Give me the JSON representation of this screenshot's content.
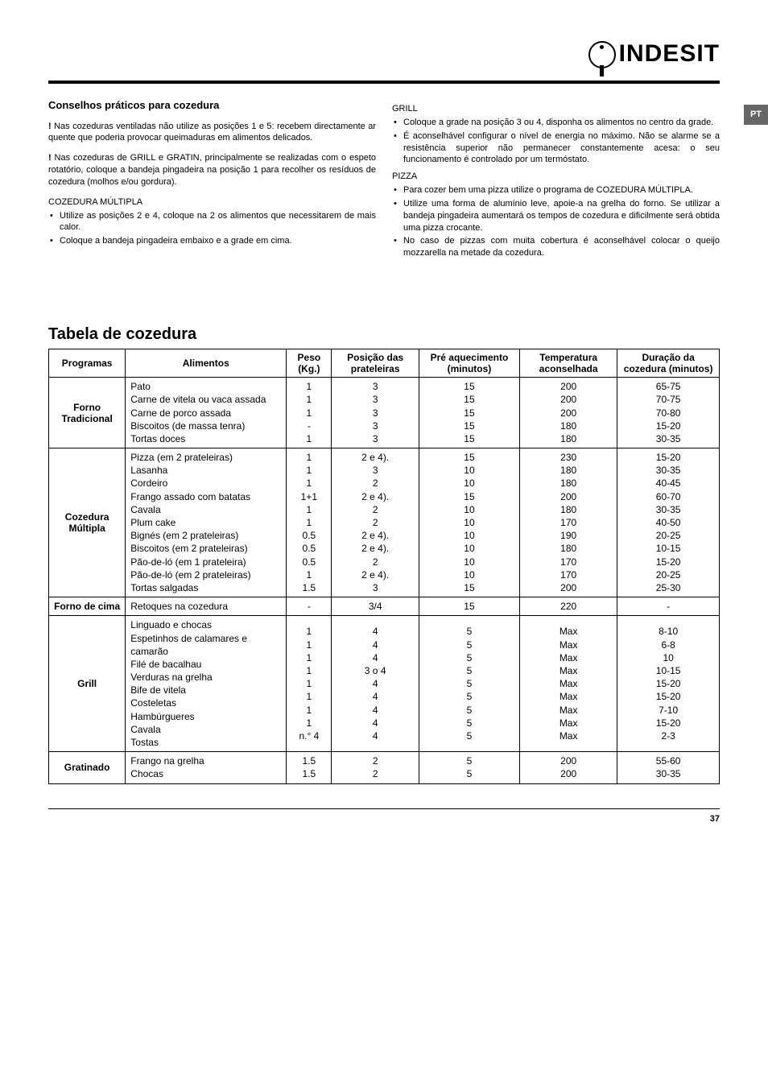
{
  "logo_text": "INDESIT",
  "lang_tab": "PT",
  "page_number": "37",
  "left": {
    "heading": "Conselhos práticos para cozedura",
    "p1_prefix": "!",
    "p1": "Nas cozeduras ventiladas não utilize as posições 1 e 5: recebem directamente ar quente que poderia provocar queimaduras em alimentos delicados.",
    "p2_prefix": "!",
    "p2": "Nas cozeduras de GRILL e GRATIN, principalmente se realizadas com o espeto rotatório, coloque a bandeja pingadeira na posição 1 para recolher os resíduos de cozedura (molhos e/ou gordura).",
    "sub1": "COZEDURA MÚLTIPLA",
    "sub1_items": [
      "Utilize as posições 2 e 4, coloque na 2 os alimentos que necessitarem de mais calor.",
      "Coloque a bandeja pingadeira embaixo e a grade em cima."
    ]
  },
  "right": {
    "sub1": "GRILL",
    "sub1_items": [
      "Coloque a grade na posição 3 ou 4, disponha os alimentos no centro da grade.",
      "É aconselhável configurar o nível de energia no máximo. Não se alarme se a resistência superior não permanecer constantemente acesa: o seu funcionamento é controlado por um termóstato."
    ],
    "sub2": "PIZZA",
    "sub2_items": [
      "Para cozer bem uma pizza utilize o programa de COZEDURA MÚLTIPLA.",
      "Utilize uma forma de alumínio leve, apoie-a na grelha do forno. Se utilizar a bandeja pingadeira aumentará os tempos de cozedura e dificilmente será obtida uma pizza crocante.",
      "No caso de pizzas com muita cobertura é aconselhável colocar o queijo mozzarella na metade da cozedura."
    ]
  },
  "table_title": "Tabela de cozedura",
  "headers": [
    "Programas",
    "Alimentos",
    "Peso (Kg.)",
    "Posição das prateleiras",
    "Pré aquecimento (minutos)",
    "Temperatura aconselhada",
    "Duração da cozedura (minutos)"
  ],
  "groups": [
    {
      "program": "Forno Tradicional",
      "foods": [
        "Pato",
        "Carne de vitela ou vaca assada",
        "Carne de porco assada",
        "Biscoitos (de massa tenra)",
        "Tortas doces"
      ],
      "peso": [
        "1",
        "1",
        "1",
        "-",
        "1"
      ],
      "pos": [
        "3",
        "3",
        "3",
        "3",
        "3"
      ],
      "pre": [
        "15",
        "15",
        "15",
        "15",
        "15"
      ],
      "temp": [
        "200",
        "200",
        "200",
        "180",
        "180"
      ],
      "dur": [
        "65-75",
        "70-75",
        "70-80",
        "15-20",
        "30-35"
      ]
    },
    {
      "program": "Cozedura Múltipla",
      "foods": [
        "Pizza (em 2 prateleiras)",
        "Lasanha",
        "Cordeiro",
        "Frango assado com batatas",
        "Cavala",
        "Plum cake",
        "Bignés (em 2 prateleiras)",
        "Biscoitos (em 2 prateleiras)",
        "Pão-de-ló (em 1 prateleira)",
        "Pão-de-ló (em 2 prateleiras)",
        "Tortas salgadas"
      ],
      "peso": [
        "1",
        "1",
        "1",
        "1+1",
        "1",
        "1",
        "0.5",
        "0.5",
        "0.5",
        "1",
        "1.5"
      ],
      "pos": [
        "2 e 4).",
        "3",
        "2",
        "2 e 4).",
        "2",
        "2",
        "2 e 4).",
        "2 e 4).",
        "2",
        "2 e 4).",
        "3"
      ],
      "pre": [
        "15",
        "10",
        "10",
        "15",
        "10",
        "10",
        "10",
        "10",
        "10",
        "10",
        "15"
      ],
      "temp": [
        "230",
        "180",
        "180",
        "200",
        "180",
        "170",
        "190",
        "180",
        "170",
        "170",
        "200"
      ],
      "dur": [
        "15-20",
        "30-35",
        "40-45",
        "60-70",
        "30-35",
        "40-50",
        "20-25",
        "10-15",
        "15-20",
        "20-25",
        "25-30"
      ]
    },
    {
      "program": "Forno de cima",
      "foods": [
        "Retoques na cozedura"
      ],
      "peso": [
        "-"
      ],
      "pos": [
        "3/4"
      ],
      "pre": [
        "15"
      ],
      "temp": [
        "220"
      ],
      "dur": [
        "-"
      ]
    },
    {
      "program": "Grill",
      "foods": [
        "Linguado e chocas",
        "Espetinhos de calamares e camarão",
        "Filé de bacalhau",
        "Verduras na grelha",
        "Bife de vitela",
        "Costeletas",
        "Hambúrgueres",
        "Cavala",
        "Tostas"
      ],
      "peso": [
        "1",
        "1",
        "1",
        "1",
        "1",
        "1",
        "1",
        "1",
        "n.° 4"
      ],
      "pos": [
        "4",
        "4",
        "4",
        "3 o 4",
        "4",
        "4",
        "4",
        "4",
        "4"
      ],
      "pre": [
        "5",
        "5",
        "5",
        "5",
        "5",
        "5",
        "5",
        "5",
        "5"
      ],
      "temp": [
        "Max",
        "Max",
        "Max",
        "Max",
        "Max",
        "Max",
        "Max",
        "Max",
        "Max"
      ],
      "dur": [
        "8-10",
        "6-8",
        "10",
        "10-15",
        "15-20",
        "15-20",
        "7-10",
        "15-20",
        "2-3"
      ]
    },
    {
      "program": "Gratinado",
      "foods": [
        "Frango na grelha",
        "Chocas"
      ],
      "peso": [
        "1.5",
        "1.5"
      ],
      "pos": [
        "2",
        "2"
      ],
      "pre": [
        "5",
        "5"
      ],
      "temp": [
        "200",
        "200"
      ],
      "dur": [
        "55-60",
        "30-35"
      ]
    }
  ]
}
